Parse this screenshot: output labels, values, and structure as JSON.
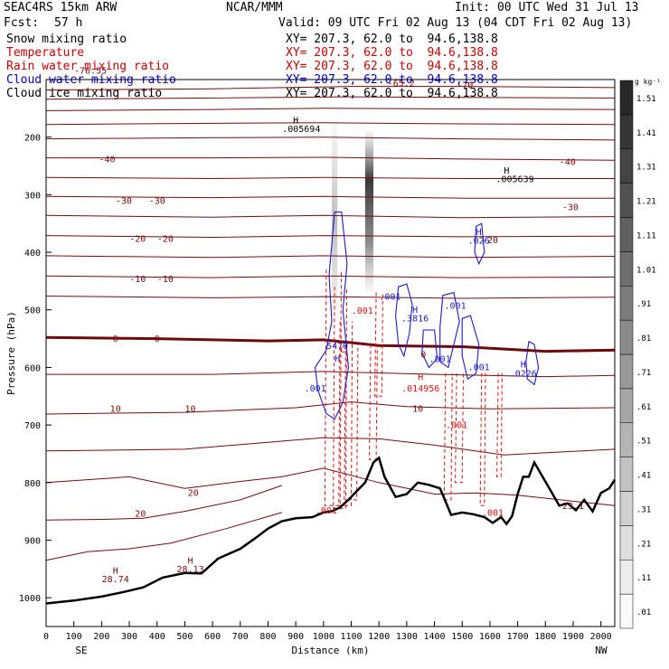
{
  "header": {
    "model": "SEAC4RS 15km ARW",
    "center": "NCAR/MMM",
    "init": "Init: 00 UTC Wed 31 Jul 13",
    "fcst_label": "Fcst:",
    "fcst_value": "57 h",
    "valid": "Valid: 09 UTC Fri 02 Aug 13 (04 CDT Fri 02 Aug 13)"
  },
  "legend": [
    {
      "label": "Snow mixing ratio",
      "xy": "XY= 207.3, 62.0 to  94.6,138.8",
      "color": "#000000"
    },
    {
      "label": "Temperature",
      "xy": "XY= 207.3, 62.0 to  94.6,138.8",
      "color": "#cc0000"
    },
    {
      "label": "Rain water mixing ratio",
      "xy": "XY= 207.3, 62.0 to  94.6,138.8",
      "color": "#cc0000"
    },
    {
      "label": "Cloud water mixing ratio",
      "xy": "XY= 207.3, 62.0 to  94.6,138.8",
      "color": "#0000cc"
    },
    {
      "label": "Cloud ice mixing ratio",
      "xy": "XY= 207.3, 62.0 to  94.6,138.8",
      "color": "#000000"
    }
  ],
  "colors": {
    "temperature": "#7a0b0b",
    "freezing": "#6e0a0a",
    "rain": "#dd1111",
    "cloud_water": "#1a1acc",
    "terrain": "#000000",
    "snow": "#333333"
  },
  "chart_data": {
    "type": "cross-section",
    "xlabel": "Distance (km)",
    "ylabel": "Pressure (hPa)",
    "xlim": [
      0,
      2050
    ],
    "ylim": [
      1050,
      100
    ],
    "x_ticks": [
      0,
      100,
      200,
      300,
      400,
      500,
      600,
      700,
      800,
      900,
      1000,
      1100,
      1200,
      1300,
      1400,
      1500,
      1600,
      1700,
      1800,
      1900,
      2000
    ],
    "y_ticks": [
      200,
      300,
      400,
      500,
      600,
      700,
      800,
      900,
      1000
    ],
    "x_end_labels": {
      "left": "SE",
      "right": "NW"
    },
    "colorbar": {
      "unit": "g kg⁻¹",
      "labels": [
        ".01",
        ".11",
        ".21",
        ".31",
        ".41",
        ".51",
        ".61",
        ".71",
        ".81",
        ".91",
        "1.01",
        "1.11",
        "1.21",
        "1.31",
        "1.41",
        "1.51"
      ]
    },
    "temperature_labels": [
      {
        "x": 160,
        "p": 90,
        "text": "-76.55"
      },
      {
        "x": 1280,
        "p": 112,
        "text": "-65.2"
      },
      {
        "x": 1510,
        "p": 115,
        "text": "-70"
      },
      {
        "x": 220,
        "p": 244,
        "text": "-40"
      },
      {
        "x": 1880,
        "p": 248,
        "text": "-40"
      },
      {
        "x": 280,
        "p": 316,
        "text": "-30"
      },
      {
        "x": 400,
        "p": 316,
        "text": "-30"
      },
      {
        "x": 1890,
        "p": 327,
        "text": "-30"
      },
      {
        "x": 330,
        "p": 382,
        "text": "-20"
      },
      {
        "x": 430,
        "p": 382,
        "text": "-20"
      },
      {
        "x": 1600,
        "p": 384,
        "text": "-20"
      },
      {
        "x": 330,
        "p": 452,
        "text": "-10"
      },
      {
        "x": 430,
        "p": 452,
        "text": "-10"
      },
      {
        "x": 250,
        "p": 555,
        "text": "0"
      },
      {
        "x": 400,
        "p": 555,
        "text": "0"
      },
      {
        "x": 1360,
        "p": 583,
        "text": "0"
      },
      {
        "x": 250,
        "p": 677,
        "text": "10"
      },
      {
        "x": 520,
        "p": 677,
        "text": "10"
      },
      {
        "x": 1340,
        "p": 677,
        "text": "10"
      },
      {
        "x": 530,
        "p": 823,
        "text": "20"
      },
      {
        "x": 340,
        "p": 859,
        "text": "20"
      }
    ],
    "isotherms": [
      {
        "t": -70,
        "points": [
          [
            0,
            118
          ],
          [
            600,
            116
          ],
          [
            1100,
            112
          ],
          [
            1500,
            112
          ],
          [
            2050,
            114
          ]
        ]
      },
      {
        "t": -65,
        "points": [
          [
            0,
            134
          ],
          [
            600,
            132
          ],
          [
            1100,
            130
          ],
          [
            1500,
            131
          ],
          [
            2050,
            132
          ]
        ]
      },
      {
        "t": -60,
        "points": [
          [
            0,
            154
          ],
          [
            600,
            152
          ],
          [
            1000,
            150
          ],
          [
            1500,
            151
          ],
          [
            2050,
            152
          ]
        ]
      },
      {
        "t": -50,
        "points": [
          [
            0,
            178
          ],
          [
            600,
            176
          ],
          [
            1000,
            175
          ],
          [
            1500,
            177
          ],
          [
            2050,
            178
          ]
        ]
      },
      {
        "t": -45,
        "points": [
          [
            0,
            203
          ],
          [
            600,
            201
          ],
          [
            1000,
            200
          ],
          [
            1500,
            203
          ],
          [
            2050,
            205
          ]
        ]
      },
      {
        "t": -40,
        "points": [
          [
            0,
            236
          ],
          [
            600,
            236
          ],
          [
            1000,
            235
          ],
          [
            1500,
            238
          ],
          [
            2050,
            240
          ]
        ]
      },
      {
        "t": -35,
        "points": [
          [
            0,
            270
          ],
          [
            600,
            272
          ],
          [
            1000,
            270
          ],
          [
            1500,
            272
          ],
          [
            2050,
            272
          ]
        ]
      },
      {
        "t": -30,
        "points": [
          [
            0,
            303
          ],
          [
            600,
            305
          ],
          [
            1000,
            303
          ],
          [
            1500,
            306
          ],
          [
            2050,
            306
          ]
        ]
      },
      {
        "t": -25,
        "points": [
          [
            0,
            336
          ],
          [
            600,
            339
          ],
          [
            1000,
            336
          ],
          [
            1500,
            340
          ],
          [
            2050,
            338
          ]
        ]
      },
      {
        "t": -20,
        "points": [
          [
            0,
            371
          ],
          [
            600,
            374
          ],
          [
            1000,
            371
          ],
          [
            1500,
            373
          ],
          [
            2050,
            372
          ]
        ]
      },
      {
        "t": -15,
        "points": [
          [
            0,
            406
          ],
          [
            600,
            409
          ],
          [
            1000,
            406
          ],
          [
            1500,
            409
          ],
          [
            2050,
            407
          ]
        ]
      },
      {
        "t": -10,
        "points": [
          [
            0,
            441
          ],
          [
            600,
            444
          ],
          [
            1000,
            441
          ],
          [
            1500,
            444
          ],
          [
            2050,
            443
          ]
        ]
      },
      {
        "t": -5,
        "points": [
          [
            0,
            476
          ],
          [
            600,
            479
          ],
          [
            1000,
            477
          ],
          [
            1500,
            480
          ],
          [
            2050,
            478
          ]
        ]
      },
      {
        "t": 0,
        "points": [
          [
            0,
            548
          ],
          [
            400,
            550
          ],
          [
            800,
            554
          ],
          [
            1000,
            552
          ],
          [
            1200,
            562
          ],
          [
            1500,
            564
          ],
          [
            1800,
            572
          ],
          [
            2050,
            570
          ]
        ]
      },
      {
        "t": 5,
        "points": [
          [
            0,
            612
          ],
          [
            600,
            612
          ],
          [
            1000,
            607
          ],
          [
            1400,
            612
          ],
          [
            1800,
            616
          ],
          [
            2050,
            614
          ]
        ]
      },
      {
        "t": 10,
        "points": [
          [
            0,
            681
          ],
          [
            500,
            678
          ],
          [
            900,
            670
          ],
          [
            1100,
            660
          ],
          [
            1300,
            668
          ],
          [
            1600,
            672
          ],
          [
            2050,
            670
          ]
        ]
      },
      {
        "t": 15,
        "points": [
          [
            0,
            745
          ],
          [
            500,
            742
          ],
          [
            800,
            730
          ],
          [
            1000,
            722
          ],
          [
            1200,
            724
          ],
          [
            1400,
            735
          ],
          [
            1650,
            752
          ],
          [
            2050,
            742
          ]
        ]
      },
      {
        "t": 20,
        "points": [
          [
            0,
            800
          ],
          [
            300,
            790
          ],
          [
            500,
            810
          ],
          [
            700,
            798
          ],
          [
            850,
            790
          ],
          [
            1000,
            775
          ],
          [
            1200,
            800
          ],
          [
            1400,
            820
          ],
          [
            1550,
            818
          ],
          [
            1700,
            822
          ],
          [
            2050,
            840
          ]
        ]
      },
      {
        "t": 25,
        "points": [
          [
            0,
            865
          ],
          [
            200,
            864
          ],
          [
            350,
            862
          ],
          [
            500,
            850
          ],
          [
            700,
            830
          ],
          [
            850,
            805
          ]
        ]
      },
      {
        "t": 28,
        "points": [
          [
            0,
            935
          ],
          [
            150,
            920
          ],
          [
            300,
            915
          ],
          [
            450,
            905
          ],
          [
            650,
            880
          ],
          [
            850,
            852
          ]
        ]
      }
    ],
    "terrain": [
      [
        0,
        1010
      ],
      [
        100,
        1005
      ],
      [
        200,
        998
      ],
      [
        280,
        990
      ],
      [
        350,
        982
      ],
      [
        420,
        965
      ],
      [
        500,
        957
      ],
      [
        560,
        958
      ],
      [
        620,
        932
      ],
      [
        700,
        915
      ],
      [
        750,
        898
      ],
      [
        800,
        880
      ],
      [
        850,
        867
      ],
      [
        900,
        862
      ],
      [
        960,
        860
      ],
      [
        1000,
        852
      ],
      [
        1030,
        850
      ],
      [
        1060,
        843
      ],
      [
        1090,
        830
      ],
      [
        1120,
        815
      ],
      [
        1150,
        800
      ],
      [
        1180,
        765
      ],
      [
        1200,
        757
      ],
      [
        1220,
        790
      ],
      [
        1260,
        825
      ],
      [
        1300,
        820
      ],
      [
        1340,
        800
      ],
      [
        1380,
        804
      ],
      [
        1420,
        810
      ],
      [
        1460,
        856
      ],
      [
        1500,
        852
      ],
      [
        1540,
        855
      ],
      [
        1580,
        860
      ],
      [
        1610,
        870
      ],
      [
        1640,
        860
      ],
      [
        1660,
        872
      ],
      [
        1680,
        858
      ],
      [
        1700,
        820
      ],
      [
        1720,
        790
      ],
      [
        1740,
        790
      ],
      [
        1760,
        765
      ],
      [
        1790,
        790
      ],
      [
        1820,
        815
      ],
      [
        1850,
        840
      ],
      [
        1880,
        836
      ],
      [
        1910,
        848
      ],
      [
        1940,
        830
      ],
      [
        1970,
        850
      ],
      [
        2000,
        818
      ],
      [
        2030,
        810
      ],
      [
        2050,
        795
      ]
    ],
    "rain_labels": [
      {
        "x": 1140,
        "p": 507,
        "text": ".001"
      },
      {
        "x": 1350,
        "p": 622,
        "text": "H"
      },
      {
        "x": 1350,
        "p": 642,
        "text": ".014956"
      },
      {
        "x": 1480,
        "p": 705,
        "text": ".001"
      },
      {
        "x": 1010,
        "p": 854,
        "text": ".001"
      },
      {
        "x": 1610,
        "p": 858,
        "text": ".001"
      },
      {
        "x": 1070,
        "p": 574,
        "text": "C"
      }
    ],
    "cloud_water_labels": [
      {
        "x": 1240,
        "p": 482,
        "text": ".001"
      },
      {
        "x": 1330,
        "p": 505,
        "text": "H"
      },
      {
        "x": 1330,
        "p": 520,
        "text": ".3816"
      },
      {
        "x": 1475,
        "p": 498,
        "text": ".001"
      },
      {
        "x": 1420,
        "p": 591,
        "text": ".001"
      },
      {
        "x": 1560,
        "p": 605,
        "text": ".001"
      },
      {
        "x": 1720,
        "p": 600,
        "text": "H"
      },
      {
        "x": 1720,
        "p": 616,
        "text": ".0226"
      },
      {
        "x": 1560,
        "p": 370,
        "text": "H"
      },
      {
        "x": 1560,
        "p": 385,
        "text": ".026"
      },
      {
        "x": 970,
        "p": 642,
        "text": ".001"
      },
      {
        "x": 1050,
        "p": 590,
        "text": "H"
      },
      {
        "x": 1050,
        "p": 568,
        "text": "5479"
      }
    ],
    "snow_labels": [
      {
        "x": 900,
        "p": 176,
        "text": "H"
      },
      {
        "x": 920,
        "p": 191,
        "text": ".005694"
      },
      {
        "x": 1660,
        "p": 263,
        "text": "H"
      },
      {
        "x": 1690,
        "p": 278,
        "text": ".005639"
      }
    ],
    "surface_labels": [
      {
        "x": 250,
        "p": 958,
        "text": "H"
      },
      {
        "x": 250,
        "p": 973,
        "text": "28.74"
      },
      {
        "x": 520,
        "p": 941,
        "text": "H"
      },
      {
        "x": 520,
        "p": 956,
        "text": "28.13"
      },
      {
        "x": 1900,
        "p": 846,
        "text": "23.1"
      }
    ]
  }
}
